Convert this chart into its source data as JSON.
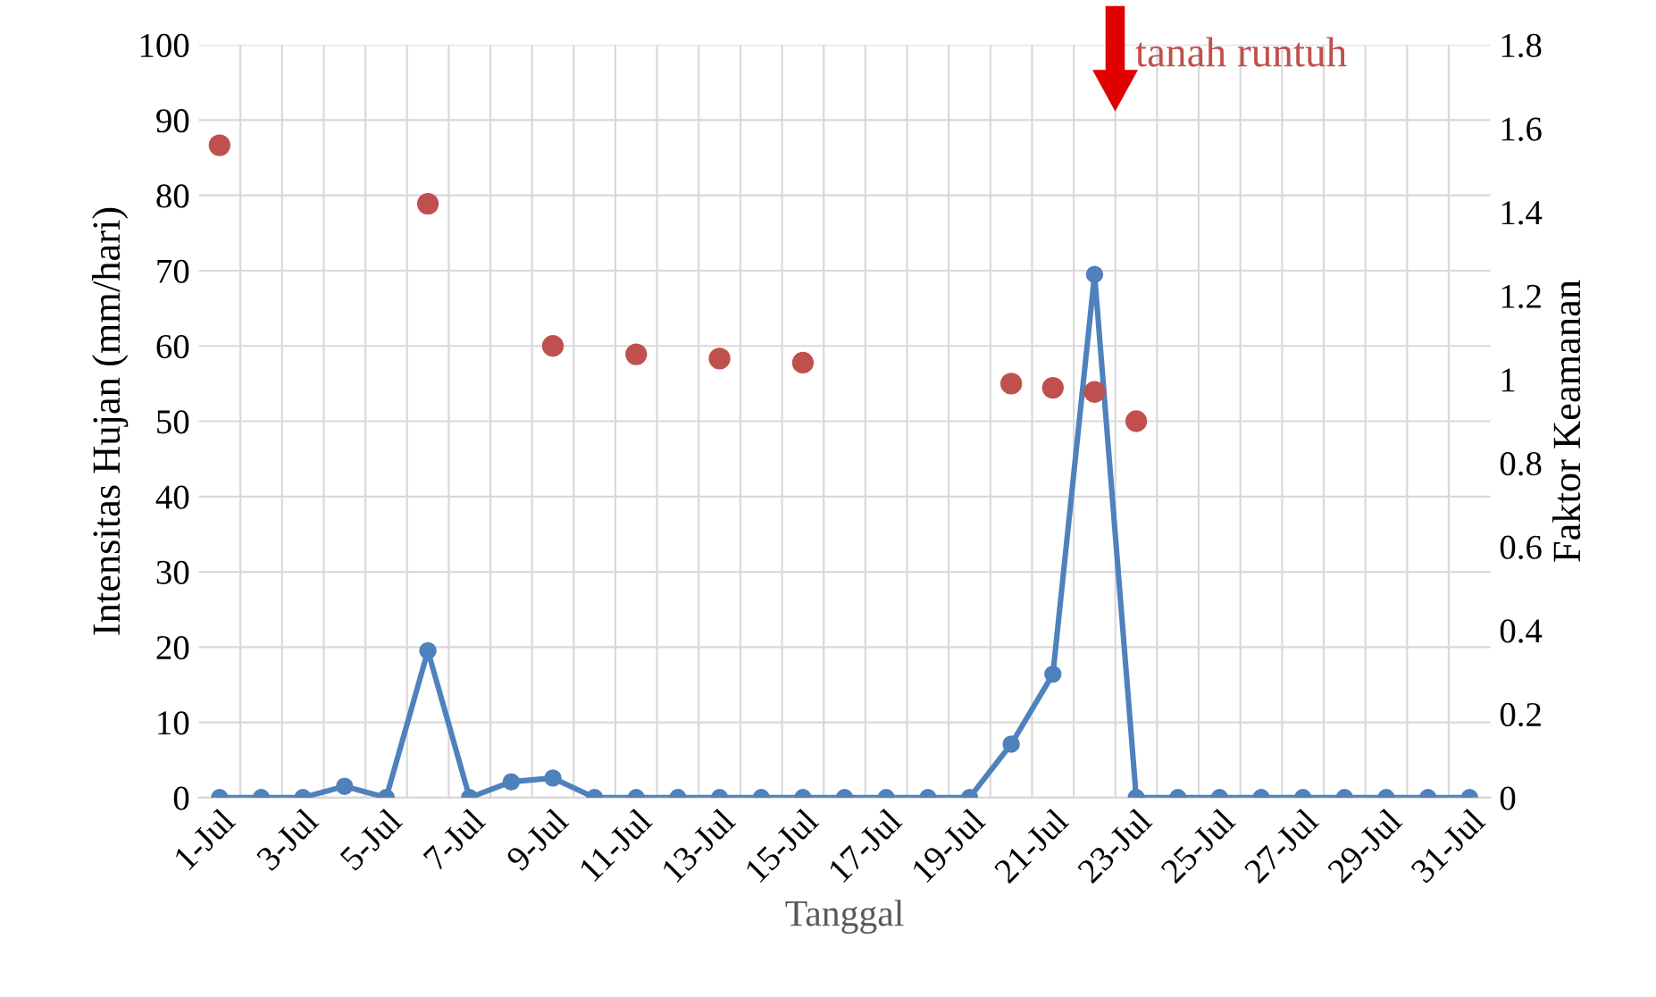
{
  "chart_data": {
    "type": "line",
    "xlabel": "Tanggal",
    "ylabel": "Intensitas Hujan (mm/hari)",
    "y2label": "Faktor Keamanan",
    "categories": [
      "1-Jul",
      null,
      "3-Jul",
      null,
      "5-Jul",
      null,
      "7-Jul",
      null,
      "9-Jul",
      null,
      "11-Jul",
      null,
      "13-Jul",
      null,
      "15-Jul",
      null,
      "17-Jul",
      null,
      "19-Jul",
      null,
      "21-Jul",
      null,
      "23-Jul",
      null,
      "25-Jul",
      null,
      "27-Jul",
      null,
      "29-Jul",
      null,
      "31-Jul"
    ],
    "series": [
      {
        "color": "#4f81bd",
        "values": [
          0,
          0,
          0,
          1.5,
          0,
          19.5,
          0,
          2.1,
          2.6,
          0,
          0,
          0,
          0,
          0,
          0,
          0,
          0,
          0,
          0,
          7.1,
          16.4,
          69.5,
          0,
          0,
          0,
          0,
          0,
          0,
          0,
          0,
          0
        ]
      },
      {
        "type": "scatter",
        "axis": "y2",
        "color": "#c0504d",
        "values": [
          1.56,
          null,
          null,
          null,
          null,
          1.42,
          null,
          null,
          1.08,
          null,
          1.06,
          null,
          1.05,
          null,
          1.04,
          null,
          null,
          null,
          null,
          0.99,
          0.98,
          0.97,
          0.9,
          null,
          null,
          null,
          null,
          null,
          null,
          null,
          null
        ]
      }
    ],
    "ylim": [
      0,
      100
    ],
    "yticks": [
      0,
      10,
      20,
      30,
      40,
      50,
      60,
      70,
      80,
      90,
      100
    ],
    "y2lim": [
      0,
      1.8
    ],
    "y2ticks": [
      0,
      0.2,
      0.4,
      0.6,
      0.8,
      1,
      1.2,
      1.4,
      1.6,
      1.8
    ],
    "annotations": [
      "tanah runtuh"
    ],
    "grid": true,
    "marker": "circle",
    "line_style": "solid"
  }
}
